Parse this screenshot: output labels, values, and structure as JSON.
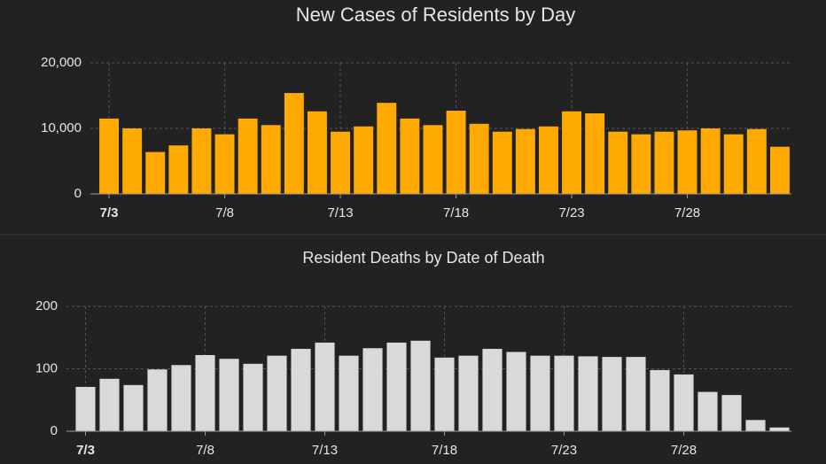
{
  "chart_data": [
    {
      "type": "bar",
      "title": "New Cases of Residents by Day",
      "categories": [
        "7/3",
        null,
        null,
        null,
        null,
        "7/8",
        null,
        null,
        null,
        null,
        "7/13",
        null,
        null,
        null,
        null,
        "7/18",
        null,
        null,
        null,
        null,
        "7/23",
        null,
        null,
        null,
        null,
        "7/28",
        null,
        null,
        null,
        null
      ],
      "values": [
        11500,
        10000,
        6400,
        7400,
        10000,
        9100,
        11500,
        10500,
        15400,
        12600,
        9500,
        10300,
        13900,
        11500,
        10500,
        12700,
        10700,
        9500,
        9900,
        10300,
        12600,
        12300,
        9500,
        9100,
        9500,
        9700,
        10000,
        9100,
        9900,
        7200
      ],
      "color": "#ffaa00",
      "ylim": [
        0,
        20000
      ],
      "yticks": [
        0,
        {
          "value": 10000,
          "label": "10,000"
        },
        {
          "value": 20000,
          "label": "20,000"
        }
      ],
      "grid": true
    },
    {
      "type": "bar",
      "title": "Resident Deaths by Date of Death",
      "categories": [
        "7/3",
        null,
        null,
        null,
        null,
        "7/8",
        null,
        null,
        null,
        null,
        "7/13",
        null,
        null,
        null,
        null,
        "7/18",
        null,
        null,
        null,
        null,
        "7/23",
        null,
        null,
        null,
        null,
        "7/28",
        null,
        null,
        null,
        null
      ],
      "values": [
        71,
        84,
        74,
        99,
        106,
        122,
        116,
        108,
        121,
        132,
        142,
        121,
        133,
        142,
        145,
        118,
        121,
        132,
        127,
        121,
        121,
        120,
        119,
        119,
        98,
        91,
        63,
        58,
        18,
        6
      ],
      "color": "#d9d9d9",
      "ylim": [
        0,
        200
      ],
      "yticks": [
        0,
        100,
        200
      ],
      "grid": true
    }
  ]
}
